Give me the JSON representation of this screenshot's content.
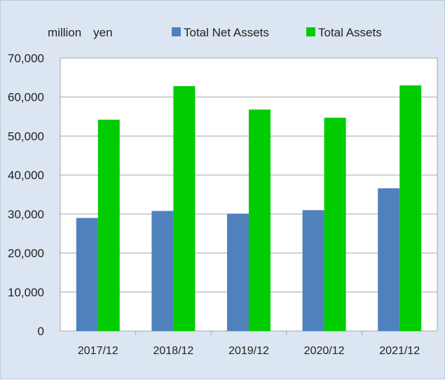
{
  "chart_data": {
    "type": "bar",
    "unit_label": "million　yen",
    "categories": [
      "2017/12",
      "2018/12",
      "2019/12",
      "2020/12",
      "2021/12"
    ],
    "series": [
      {
        "name": "Total Net Assets",
        "color": "#4f81bd",
        "values": [
          29000,
          30800,
          30100,
          31000,
          36600
        ]
      },
      {
        "name": "Total Assets",
        "color": "#00cc00",
        "values": [
          54200,
          62800,
          56800,
          54700,
          63000
        ]
      }
    ],
    "ylim": [
      0,
      70000
    ],
    "yticks": [
      "0",
      "10,000",
      "20,000",
      "30,000",
      "40,000",
      "50,000",
      "60,000",
      "70,000"
    ],
    "grid": true,
    "legend_position": "top"
  }
}
